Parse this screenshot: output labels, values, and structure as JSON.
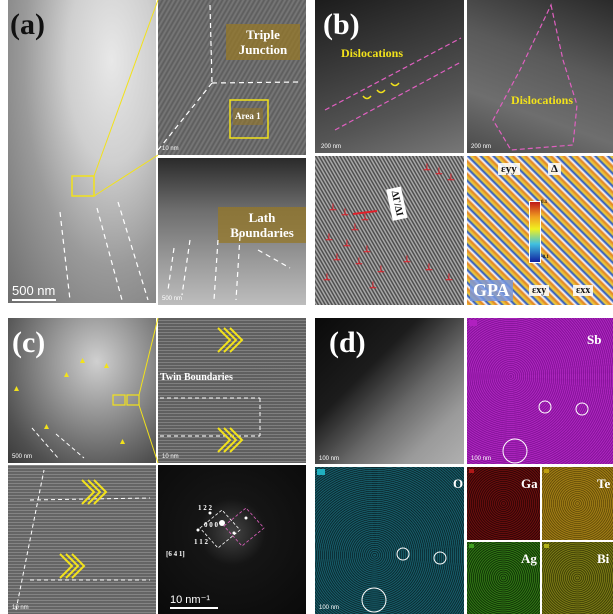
{
  "panels": {
    "a": {
      "label": "(a)",
      "main_scale": "500 nm",
      "hr_scale": "10 nm",
      "lath_scale": "500 nm",
      "tag_triple": "Triple Junction",
      "tag_area": "Area 1",
      "tag_lath": "Lath Boundaries"
    },
    "b": {
      "label": "(b)",
      "scale1": "200 nm",
      "scale2": "200 nm",
      "tag_dislocations1": "Dislocations",
      "tag_dislocations2": "Dislocations",
      "tag_ifft": "ΔΓ/ΔΙ",
      "tag_gpa": "GPA",
      "gpa_eyy": "εyy",
      "gpa_exx": "εxx",
      "gpa_exy": "εxy",
      "gpa_delta": "Δ",
      "cbar_top": "0.1",
      "cbar_bottom": "-0.1"
    },
    "c": {
      "label": "(c)",
      "scale_main": "500 nm",
      "scale_hr": "10 nm",
      "scale_hr2": "10 nm",
      "tag_twin": "Twin Boundaries",
      "saed_scale": "10 nm⁻¹",
      "zone_axis": "[6 4 1]",
      "spot_labels": [
        "1 2 2",
        "0 0 0",
        "1 1 2"
      ]
    },
    "d": {
      "label": "(d)",
      "scale_haadf": "100 nm",
      "scale_sb": "100 nm",
      "scale_o": "100 nm",
      "elements": {
        "sb": "Sb",
        "o": "O",
        "ga": "Ga",
        "te": "Te",
        "ag": "Ag",
        "bi": "Bi"
      }
    }
  },
  "colors": {
    "yellow": "#f2e21b",
    "magenta_line": "#e060c0",
    "red_marker": "#e0202a",
    "sb_map": "#b020c0",
    "o_map": "#20b0c0",
    "ga_map": "#b01818",
    "te_map": "#c0a010",
    "ag_map": "#40a020",
    "bi_map": "#b0b018"
  }
}
